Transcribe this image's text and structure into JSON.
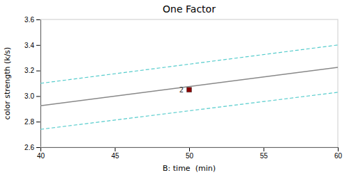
{
  "chart_data": {
    "type": "line",
    "title": "One Factor",
    "x_label": "B: time  (min)",
    "y_label": "color strength (k/s)",
    "x": [
      40,
      60
    ],
    "series": [
      {
        "color": "#55CCCC",
        "line_style": "dashed",
        "values": [
          3.1,
          3.4
        ]
      },
      {
        "color": "#55CCCC",
        "line_style": "dashed",
        "values": [
          2.74,
          3.03
        ]
      },
      {
        "color": "#888888",
        "line_style": "solid",
        "values": [
          2.925,
          3.225
        ]
      },
      {
        "type": "scatter",
        "marker": "square",
        "color": "#8B0000",
        "x": [
          50
        ],
        "values": [
          3.05
        ]
      }
    ],
    "annotations": [
      {
        "text": "2",
        "x": 50,
        "y": 3.05
      }
    ],
    "xlim": [
      40,
      60
    ],
    "ylim": [
      2.6,
      3.6
    ],
    "xticks": [
      40,
      45,
      50,
      55,
      60
    ],
    "yticks": [
      2.6,
      2.8,
      {
        "value": 3.0,
        "label": "3.0"
      },
      3.2,
      3.4,
      3.6
    ],
    "grid": false
  }
}
